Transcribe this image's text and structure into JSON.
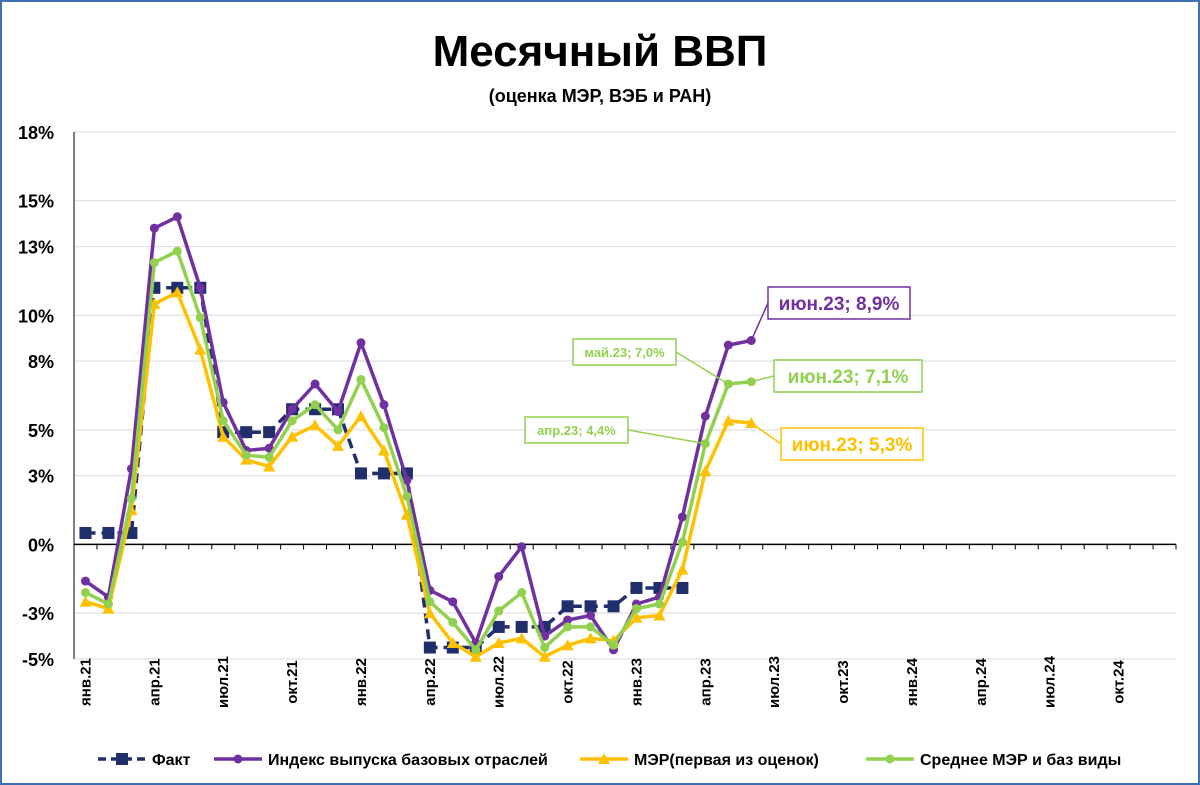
{
  "chart_data": {
    "type": "line",
    "title": "Месячный ВВП",
    "subtitle": "(оценка МЭР, ВЭБ и РАН)",
    "ylim": [
      -5,
      18
    ],
    "y_ticks": [
      18,
      15,
      13,
      10,
      8,
      5,
      3,
      0,
      -3,
      -5
    ],
    "y_tick_labels": [
      "18%",
      "15%",
      "13%",
      "10%",
      "8%",
      "5%",
      "3%",
      "0%",
      "-3%",
      "-5%"
    ],
    "x_count": 48,
    "x_ticks": [
      {
        "i": 0,
        "label": "янв.21"
      },
      {
        "i": 3,
        "label": "апр.21"
      },
      {
        "i": 6,
        "label": "июл.21"
      },
      {
        "i": 9,
        "label": "окт.21"
      },
      {
        "i": 12,
        "label": "янв.22"
      },
      {
        "i": 15,
        "label": "апр.22"
      },
      {
        "i": 18,
        "label": "июл.22"
      },
      {
        "i": 21,
        "label": "окт.22"
      },
      {
        "i": 24,
        "label": "янв.23"
      },
      {
        "i": 27,
        "label": "апр.23"
      },
      {
        "i": 30,
        "label": "июл.23"
      },
      {
        "i": 33,
        "label": "окт.23"
      },
      {
        "i": 36,
        "label": "янв.24"
      },
      {
        "i": 39,
        "label": "апр.24"
      },
      {
        "i": 42,
        "label": "июл.24"
      },
      {
        "i": 45,
        "label": "окт.24"
      }
    ],
    "series": [
      {
        "name": "Факт",
        "color": "#1f2f6b",
        "marker": "square",
        "dashed": true,
        "values": [
          0.5,
          0.5,
          0.5,
          11.2,
          11.2,
          11.2,
          4.9,
          4.9,
          4.9,
          5.9,
          5.9,
          5.9,
          3.1,
          3.1,
          3.1,
          -4.5,
          -4.5,
          -4.5,
          -3.6,
          -3.6,
          -3.6,
          -2.7,
          -2.7,
          -2.7,
          -1.9,
          -1.9,
          -1.9
        ]
      },
      {
        "name": "Индекс выпуска базовых отраслей",
        "color": "#7030a0",
        "marker": "circle",
        "dashed": false,
        "values": [
          -1.6,
          -2.3,
          3.3,
          13.8,
          14.3,
          11.2,
          6.2,
          4.1,
          4.2,
          5.9,
          7.0,
          5.8,
          8.8,
          6.1,
          2.8,
          -2.0,
          -2.5,
          -4.3,
          -1.4,
          -0.1,
          -4.0,
          -3.3,
          -3.1,
          -4.6,
          -2.6,
          -2.3,
          1.2,
          5.6,
          8.7,
          8.9
        ]
      },
      {
        "name": "МЭР(первая из оценок)",
        "color": "#ffc000",
        "marker": "triangle",
        "dashed": false,
        "values": [
          -2.5,
          -2.8,
          1.5,
          10.5,
          11.0,
          8.5,
          4.7,
          3.7,
          3.4,
          4.7,
          5.2,
          4.3,
          5.6,
          4.1,
          1.3,
          -3.0,
          -4.3,
          -4.9,
          -4.3,
          -4.1,
          -4.9,
          -4.4,
          -4.1,
          -4.2,
          -3.2,
          -3.1,
          -1.1,
          3.2,
          5.4,
          5.3
        ]
      },
      {
        "name": "Среднее МЭР и баз виды",
        "color": "#92d050",
        "marker": "circle",
        "dashed": false,
        "values": [
          -2.1,
          -2.6,
          2.0,
          12.3,
          12.8,
          9.9,
          5.4,
          3.9,
          3.8,
          5.4,
          6.1,
          5.0,
          7.2,
          5.1,
          2.1,
          -2.5,
          -3.4,
          -4.6,
          -2.9,
          -2.1,
          -4.5,
          -3.6,
          -3.6,
          -4.4,
          -2.8,
          -2.6,
          0.1,
          4.4,
          7.0,
          7.1
        ]
      }
    ],
    "legend_position": "bottom",
    "annotations": [
      {
        "text": "июн.23; 8,9%",
        "series": 1,
        "point": 29,
        "size": "large"
      },
      {
        "text": "май.23; 7,0%",
        "series": 3,
        "point": 28,
        "size": "small"
      },
      {
        "text": "июн.23; 7,1%",
        "series": 3,
        "point": 29,
        "size": "large"
      },
      {
        "text": "апр.23; 4,4%",
        "series": 3,
        "point": 27,
        "size": "small"
      },
      {
        "text": "июн.23; 5,3%",
        "series": 2,
        "point": 29,
        "size": "large"
      }
    ]
  }
}
